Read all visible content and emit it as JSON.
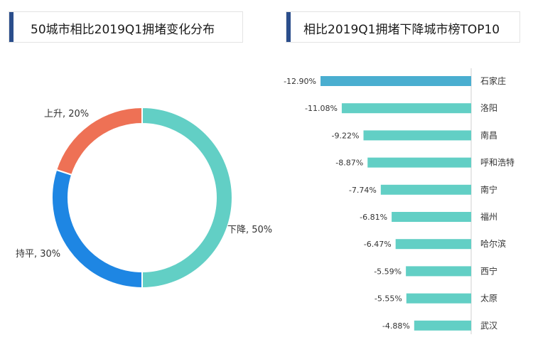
{
  "headers": {
    "left_title": "50城市相比2019Q1拥堵变化分布",
    "right_title": "相比2019Q1拥堵下降城市榜TOP10"
  },
  "colors": {
    "accent": "#2b4e8c",
    "down": "#62cfc5",
    "flat": "#1e86e3",
    "up": "#ee7155",
    "top_bar": "#4aaed0"
  },
  "chart_data": [
    {
      "type": "pie",
      "title": "50城市相比2019Q1拥堵变化分布",
      "slices": [
        {
          "name": "下降",
          "value": 50,
          "label": "下降, 50%",
          "color": "#62cfc5"
        },
        {
          "name": "持平",
          "value": 30,
          "label": "持平, 30%",
          "color": "#1e86e3"
        },
        {
          "name": "上升",
          "value": 20,
          "label": "上升, 20%",
          "color": "#ee7155"
        }
      ]
    },
    {
      "type": "bar",
      "orientation": "horizontal",
      "title": "相比2019Q1拥堵下降城市榜TOP10",
      "categories": [
        "石家庄",
        "洛阳",
        "南昌",
        "呼和浩特",
        "南宁",
        "福州",
        "哈尔滨",
        "西宁",
        "太原",
        "武汉"
      ],
      "values": [
        -12.9,
        -11.08,
        -9.22,
        -8.87,
        -7.74,
        -6.81,
        -6.47,
        -5.59,
        -5.55,
        -4.88
      ],
      "value_labels": [
        "-12.90%",
        "-11.08%",
        "-9.22%",
        "-8.87%",
        "-7.74%",
        "-6.81%",
        "-6.47%",
        "-5.59%",
        "-5.55%",
        "-4.88%"
      ],
      "bar_colors": [
        "#4aaed0",
        "#62cfc5",
        "#62cfc5",
        "#62cfc5",
        "#62cfc5",
        "#62cfc5",
        "#62cfc5",
        "#62cfc5",
        "#62cfc5",
        "#62cfc5"
      ]
    }
  ]
}
